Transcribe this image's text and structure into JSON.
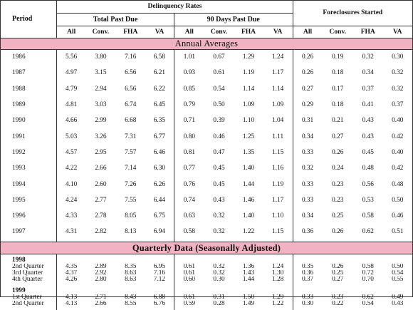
{
  "header": {
    "period": "Period",
    "delinquency_rates": "Delinquency Rates",
    "total_past_due": "Total Past Due",
    "ninety_days_past_due": "90 Days Past Due",
    "foreclosures_started": "Foreclosures Started",
    "cols": [
      "All",
      "Conv.",
      "FHA",
      "VA",
      "All",
      "Conv.",
      "FHA",
      "VA",
      "All",
      "Conv.",
      "FHA",
      "VA"
    ]
  },
  "annual_label": "Annual Averages",
  "quarterly_label": "Quarterly Data (Seasonally Adjusted)",
  "annual_rows": [
    {
      "period": "1986",
      "values": [
        "5.56",
        "3.80",
        "7.16",
        "6.58",
        "1.01",
        "0.67",
        "1.29",
        "1.24",
        "0.26",
        "0.19",
        "0.32",
        "0.30"
      ]
    },
    {
      "period": "1987",
      "values": [
        "4.97",
        "3.15",
        "6.56",
        "6.21",
        "0.93",
        "0.61",
        "1.19",
        "1.17",
        "0.26",
        "0.18",
        "0.34",
        "0.32"
      ]
    },
    {
      "period": "1988",
      "values": [
        "4.79",
        "2.94",
        "6.56",
        "6.22",
        "0.85",
        "0.54",
        "1.14",
        "1.14",
        "0.27",
        "0.17",
        "0.37",
        "0.32"
      ]
    },
    {
      "period": "1989",
      "values": [
        "4.81",
        "3.03",
        "6.74",
        "6.45",
        "0.79",
        "0.50",
        "1.09",
        "1.09",
        "0.29",
        "0.18",
        "0.41",
        "0.37"
      ]
    },
    {
      "period": "1990",
      "values": [
        "4.66",
        "2.99",
        "6.68",
        "6.35",
        "0.71",
        "0.39",
        "1.10",
        "1.04",
        "0.31",
        "0.21",
        "0.43",
        "0.40"
      ]
    },
    {
      "period": "1991",
      "values": [
        "5.03",
        "3.26",
        "7.31",
        "6.77",
        "0.80",
        "0.46",
        "1.25",
        "1.11",
        "0.34",
        "0.27",
        "0.43",
        "0.42"
      ]
    },
    {
      "period": "1992",
      "values": [
        "4.57",
        "2.95",
        "7.57",
        "6.46",
        "0.81",
        "0.47",
        "1.35",
        "1.15",
        "0.33",
        "0.26",
        "0.45",
        "0.40"
      ]
    },
    {
      "period": "1993",
      "values": [
        "4.22",
        "2.66",
        "7.14",
        "6.30",
        "0.77",
        "0.45",
        "1.40",
        "1.16",
        "0.32",
        "0.24",
        "0.48",
        "0.42"
      ]
    },
    {
      "period": "1994",
      "values": [
        "4.10",
        "2.60",
        "7.26",
        "6.26",
        "0.76",
        "0.45",
        "1.44",
        "1.19",
        "0.33",
        "0.23",
        "0.56",
        "0.48"
      ]
    },
    {
      "period": "1995",
      "values": [
        "4.24",
        "2.77",
        "7.55",
        "6.44",
        "0.74",
        "0.43",
        "1.46",
        "1.17",
        "0.33",
        "0.23",
        "0.53",
        "0.50"
      ]
    },
    {
      "period": "1996",
      "values": [
        "4.33",
        "2.78",
        "8.05",
        "6.75",
        "0.63",
        "0.32",
        "1.40",
        "1.10",
        "0.34",
        "0.25",
        "0.58",
        "0.46"
      ]
    },
    {
      "period": "1997",
      "values": [
        "4.31",
        "2.82",
        "8.13",
        "6.94",
        "0.58",
        "0.32",
        "1.22",
        "1.15",
        "0.36",
        "0.26",
        "0.62",
        "0.51"
      ]
    }
  ],
  "quarterly_groups": [
    {
      "year": "1998",
      "rows": [
        {
          "period": "2nd Quarter",
          "values": [
            "4.35",
            "2.89",
            "8.35",
            "6.95",
            "0.61",
            "0.32",
            "1.36",
            "1.24",
            "0.35",
            "0.26",
            "0.58",
            "0.50"
          ]
        },
        {
          "period": "3rd Quarter",
          "values": [
            "4.37",
            "2.92",
            "8.63",
            "7.16",
            "0.61",
            "0.32",
            "1.43",
            "1.30",
            "0.36",
            "0.25",
            "0.72",
            "0.54"
          ]
        },
        {
          "period": "4th Quarter",
          "values": [
            "4.26",
            "2.80",
            "8.63",
            "7.12",
            "0.60",
            "0.30",
            "1.44",
            "1.28",
            "0.37",
            "0.27",
            "0.70",
            "0.55"
          ]
        }
      ]
    },
    {
      "year": "1999",
      "rows": [
        {
          "period": "1st Quarter",
          "values": [
            "4.13",
            "2.71",
            "8.43",
            "6.88",
            "0.61",
            "0.31",
            "1.50",
            "1.29",
            "0.33",
            "0.23",
            "0.62",
            "0.49"
          ]
        },
        {
          "period": "2nd Quarter",
          "values": [
            "4.13",
            "2.66",
            "8.55",
            "6.76",
            "0.59",
            "0.28",
            "1.49",
            "1.22",
            "0.30",
            "0.22",
            "0.54",
            "0.43"
          ]
        }
      ]
    }
  ]
}
